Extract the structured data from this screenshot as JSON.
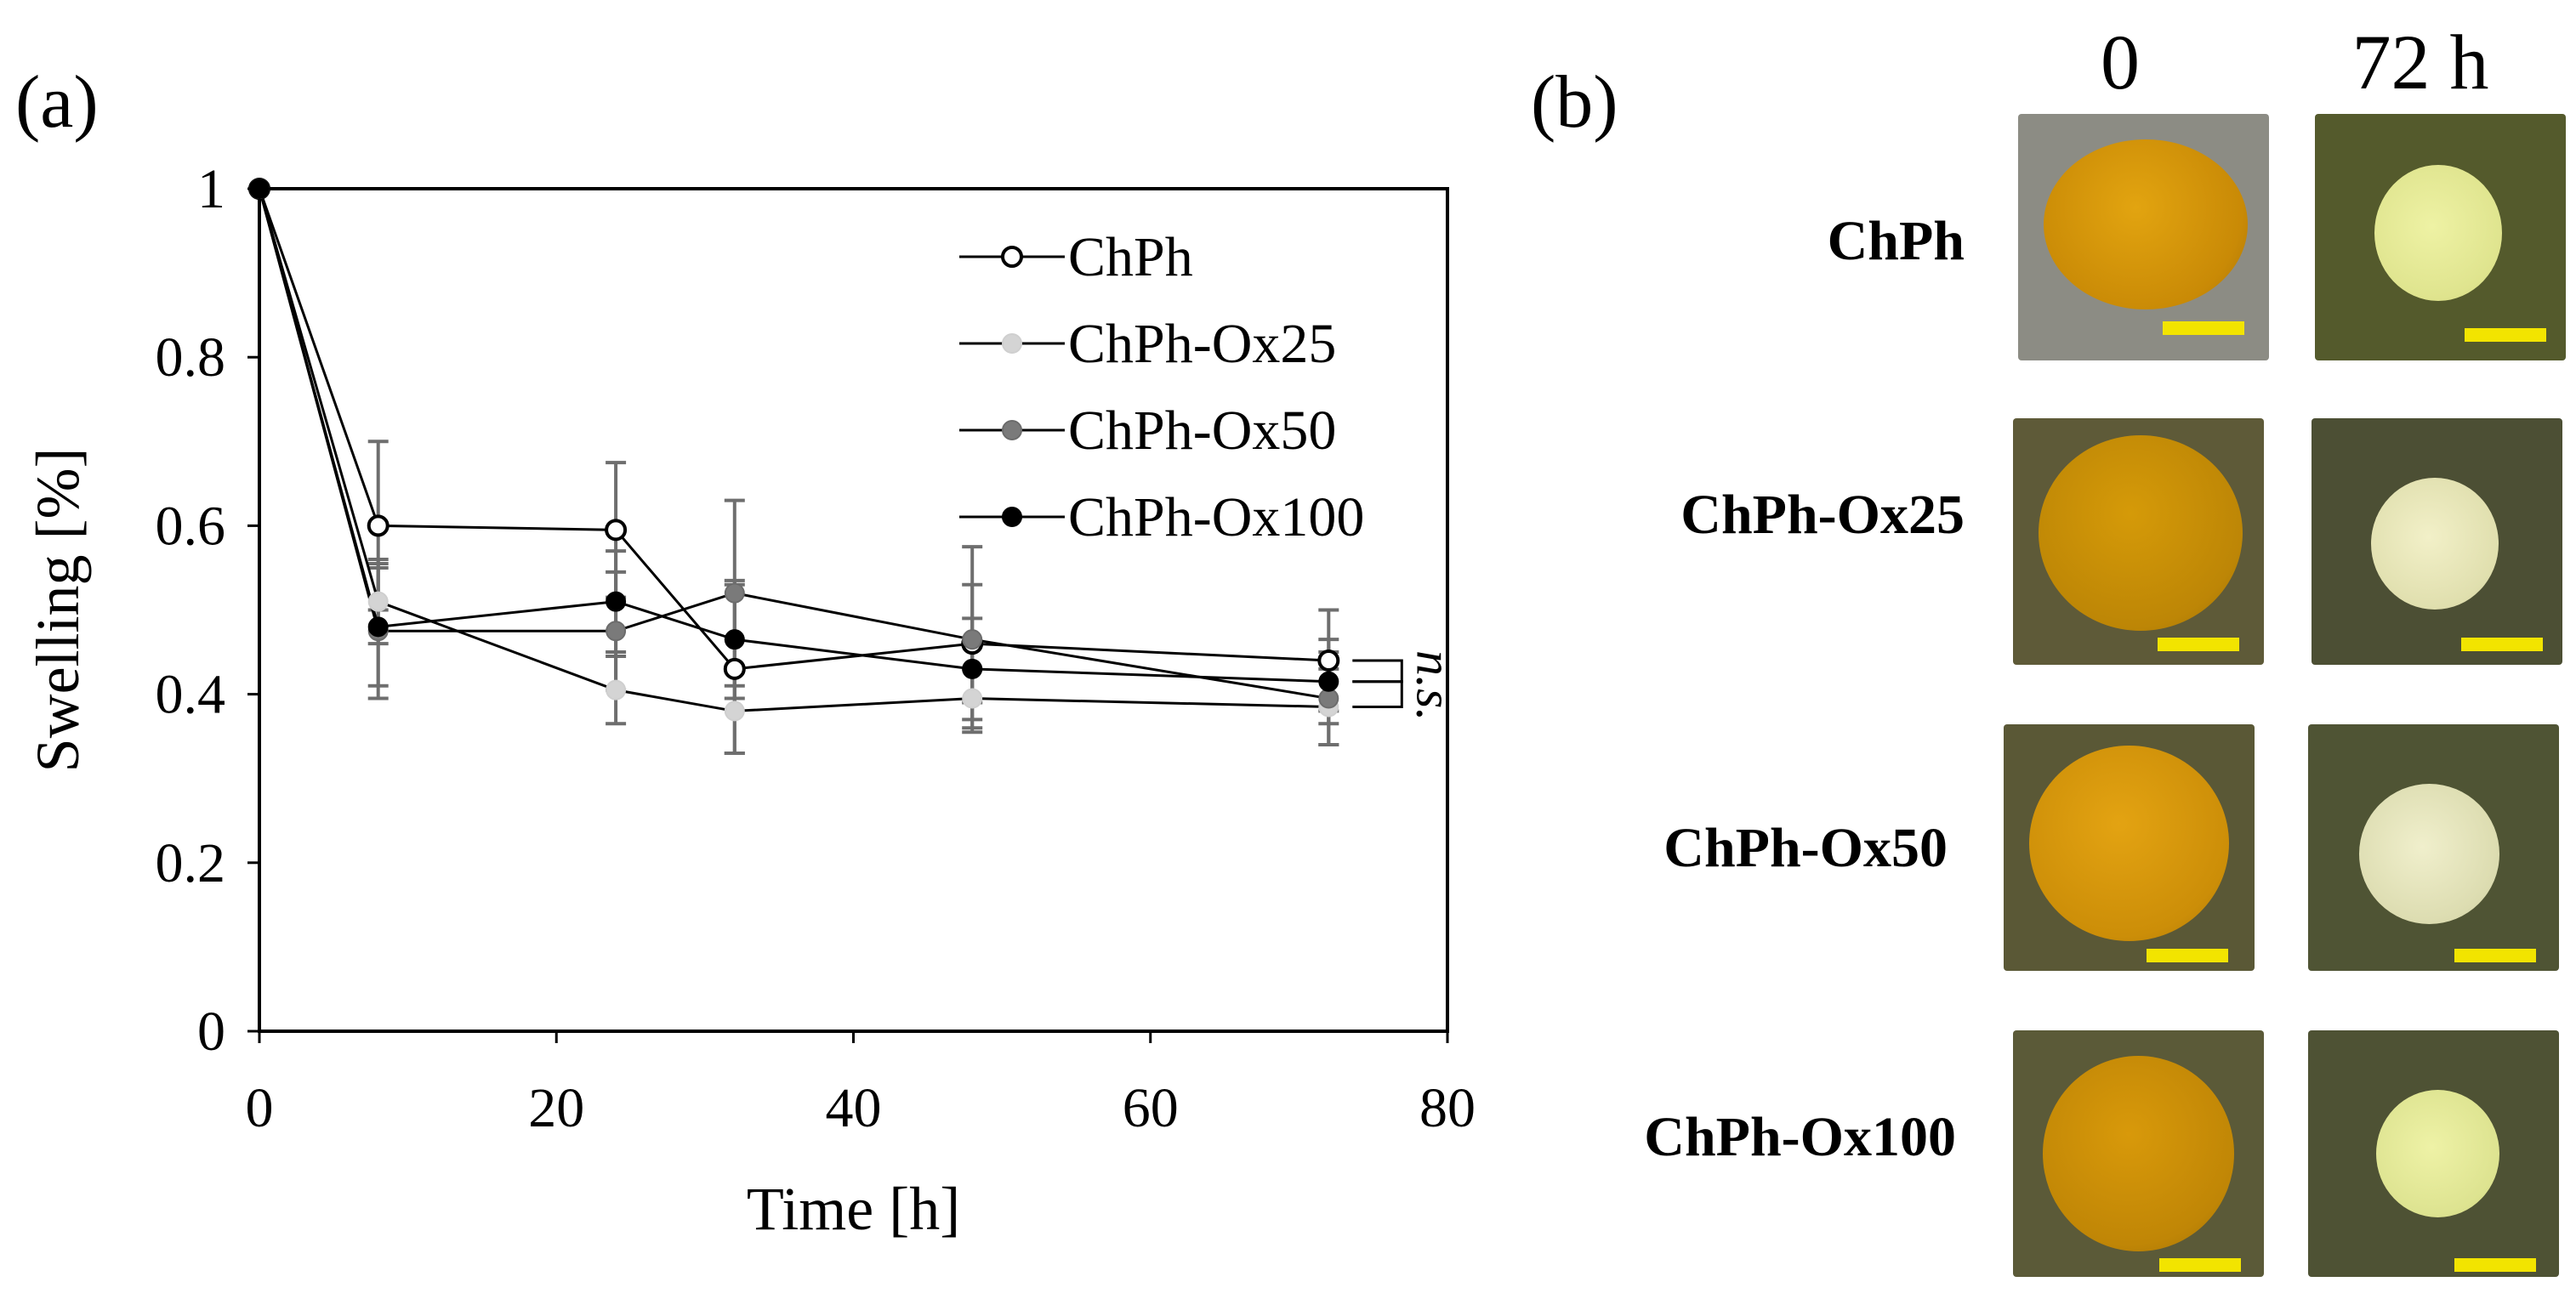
{
  "panel_a_label": "(a)",
  "panel_b_label": "(b)",
  "colors": {
    "ChPh": "#ffffff",
    "ChPh-Ox25": "#d4d4d4",
    "ChPh-Ox50": "#7a7a7a",
    "ChPh-Ox100": "#000000",
    "error_bar": "#6e6e6e",
    "scale_bar": "#f2e400"
  },
  "chart_data": {
    "type": "line",
    "title": "",
    "xlabel": "Time [h]",
    "ylabel": "Swelling [%]",
    "xlim": [
      0,
      80
    ],
    "ylim": [
      0,
      1
    ],
    "xticks": [
      "0",
      "20",
      "40",
      "60",
      "80"
    ],
    "yticks": [
      "0",
      "0.2",
      "0.4",
      "0.6",
      "0.8",
      "1"
    ],
    "x": [
      0,
      8,
      24,
      32,
      48,
      72
    ],
    "legend_position": "top-right",
    "annotation": "n.s.",
    "series": [
      {
        "name": "ChPh",
        "marker": "open-circle",
        "values": [
          1.0,
          0.6,
          0.595,
          0.43,
          0.46,
          0.44
        ],
        "errors": [
          0,
          0.1,
          0.08,
          0.1,
          0.07,
          0.06
        ]
      },
      {
        "name": "ChPh-Ox25",
        "marker": "light-grey-circle",
        "values": [
          1.0,
          0.51,
          0.405,
          0.38,
          0.395,
          0.385
        ],
        "errors": [
          0,
          0.05,
          0.04,
          0.05,
          0.035,
          0.045
        ]
      },
      {
        "name": "ChPh-Ox50",
        "marker": "grey-circle",
        "values": [
          1.0,
          0.475,
          0.475,
          0.52,
          0.465,
          0.395
        ],
        "errors": [
          0,
          0.08,
          0.07,
          0.11,
          0.11,
          0.055
        ]
      },
      {
        "name": "ChPh-Ox100",
        "marker": "black-circle",
        "values": [
          1.0,
          0.48,
          0.51,
          0.465,
          0.43,
          0.415
        ],
        "errors": [
          0,
          0.07,
          0.06,
          0.07,
          0.06,
          0.05
        ]
      }
    ]
  },
  "panel_b": {
    "columns": [
      "0",
      "72 h"
    ],
    "rows": [
      {
        "label": "ChPh"
      },
      {
        "label": "ChPh-Ox25"
      },
      {
        "label": "ChPh-Ox50"
      },
      {
        "label": "ChPh-Ox100"
      }
    ]
  }
}
